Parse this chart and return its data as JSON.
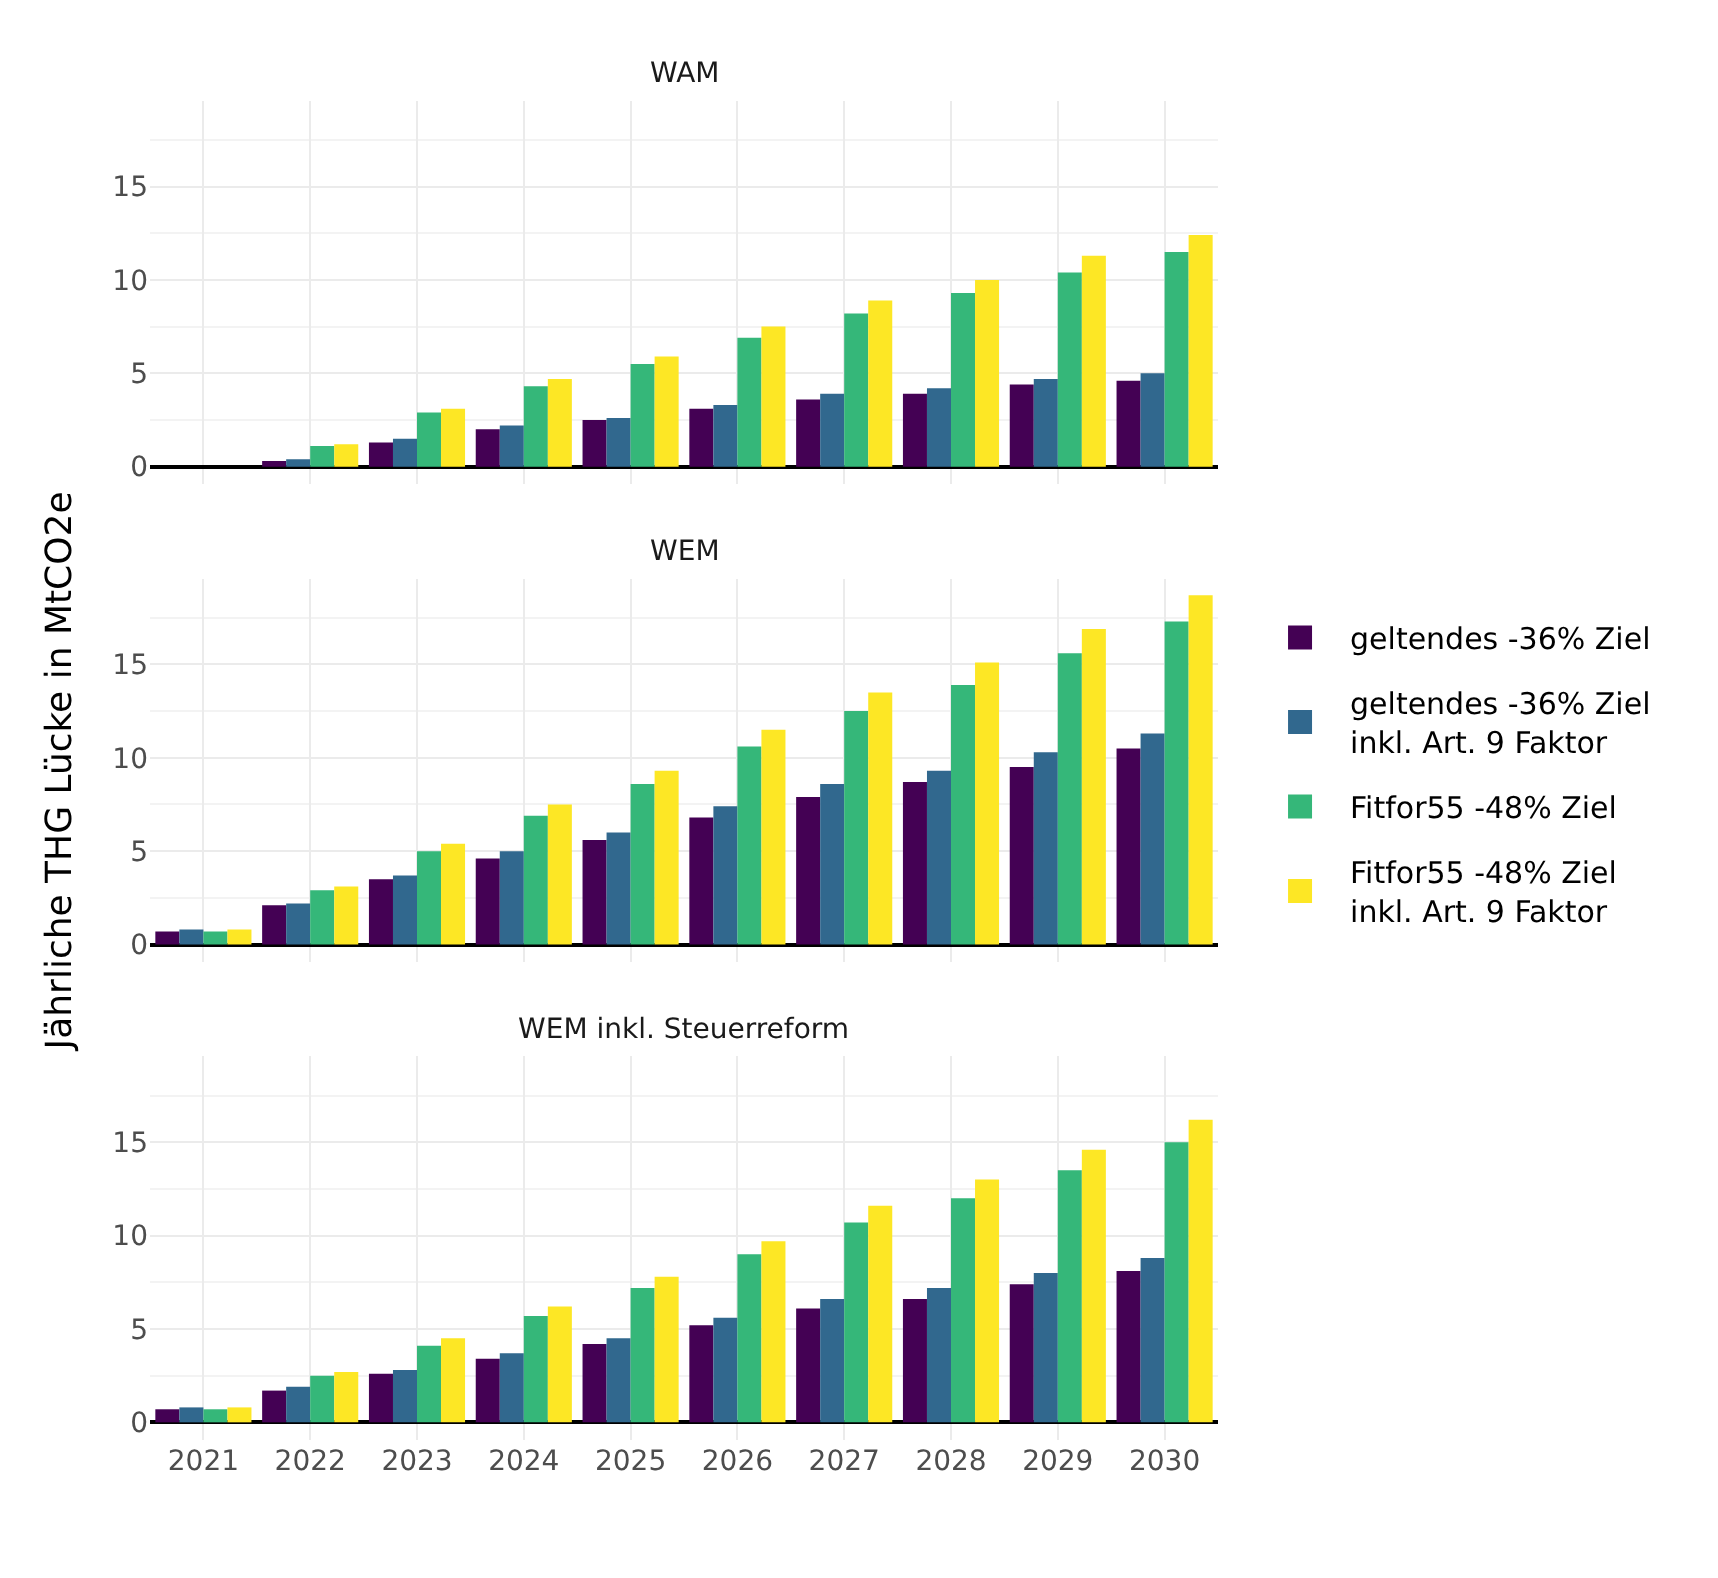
{
  "chart_data": [
    {
      "type": "bar",
      "title": "WAM",
      "categories": [
        "2021",
        "2022",
        "2023",
        "2024",
        "2025",
        "2026",
        "2027",
        "2028",
        "2029",
        "2030"
      ],
      "series": [
        {
          "name": "geltendes -36% Ziel",
          "color": "#440154",
          "values": [
            0,
            0.3,
            1.3,
            2.0,
            2.5,
            3.1,
            3.6,
            3.9,
            4.4,
            4.6
          ]
        },
        {
          "name": "geltendes -36% Ziel inkl. Art. 9 Faktor",
          "color": "#31688e",
          "values": [
            0,
            0.4,
            1.5,
            2.2,
            2.6,
            3.3,
            3.9,
            4.2,
            4.7,
            5.0
          ]
        },
        {
          "name": "Fitfor55 -48% Ziel",
          "color": "#35b779",
          "values": [
            0,
            1.1,
            2.9,
            4.3,
            5.5,
            6.9,
            8.2,
            9.3,
            10.4,
            11.5
          ]
        },
        {
          "name": "Fitfor55 -48% Ziel inkl. Art. 9 Faktor",
          "color": "#fde725",
          "values": [
            0,
            1.2,
            3.1,
            4.7,
            5.9,
            7.5,
            8.9,
            10.0,
            11.3,
            12.4
          ]
        }
      ],
      "ylim": [
        -0.95,
        19.6
      ],
      "yticks": [
        0,
        5,
        10,
        15
      ],
      "grid": true,
      "legend": "right",
      "tick_labels": "y"
    },
    {
      "type": "bar",
      "title": "WEM",
      "ylabel": "Jährliche THG Lücke in MtCO2e",
      "categories": [
        "2021",
        "2022",
        "2023",
        "2024",
        "2025",
        "2026",
        "2027",
        "2028",
        "2029",
        "2030"
      ],
      "series": [
        {
          "name": "geltendes -36% Ziel",
          "color": "#440154",
          "values": [
            0.7,
            2.1,
            3.5,
            4.6,
            5.6,
            6.8,
            7.9,
            8.7,
            9.5,
            10.5
          ]
        },
        {
          "name": "geltendes -36% Ziel inkl. Art. 9 Faktor",
          "color": "#31688e",
          "values": [
            0.8,
            2.2,
            3.7,
            5.0,
            6.0,
            7.4,
            8.6,
            9.3,
            10.3,
            11.3
          ]
        },
        {
          "name": "Fitfor55 -48% Ziel",
          "color": "#35b779",
          "values": [
            0.7,
            2.9,
            5.0,
            6.9,
            8.6,
            10.6,
            12.5,
            13.9,
            15.6,
            17.3
          ]
        },
        {
          "name": "Fitfor55 -48% Ziel inkl. Art. 9 Faktor",
          "color": "#fde725",
          "values": [
            0.8,
            3.1,
            5.4,
            7.5,
            9.3,
            11.5,
            13.5,
            15.1,
            16.9,
            18.7
          ]
        }
      ],
      "ylim": [
        -0.95,
        19.6
      ],
      "yticks": [
        0,
        5,
        10,
        15
      ],
      "grid": true,
      "legend": "right",
      "tick_labels": "y"
    },
    {
      "type": "bar",
      "title": "WEM inkl. Steuerreform",
      "categories": [
        "2021",
        "2022",
        "2023",
        "2024",
        "2025",
        "2026",
        "2027",
        "2028",
        "2029",
        "2030"
      ],
      "series": [
        {
          "name": "geltendes -36% Ziel",
          "color": "#440154",
          "values": [
            0.7,
            1.7,
            2.6,
            3.4,
            4.2,
            5.2,
            6.1,
            6.6,
            7.4,
            8.1
          ]
        },
        {
          "name": "geltendes -36% Ziel inkl. Art. 9 Faktor",
          "color": "#31688e",
          "values": [
            0.8,
            1.9,
            2.8,
            3.7,
            4.5,
            5.6,
            6.6,
            7.2,
            8.0,
            8.8
          ]
        },
        {
          "name": "Fitfor55 -48% Ziel",
          "color": "#35b779",
          "values": [
            0.7,
            2.5,
            4.1,
            5.7,
            7.2,
            9.0,
            10.7,
            12.0,
            13.5,
            15.0
          ]
        },
        {
          "name": "Fitfor55 -48% Ziel inkl. Art. 9 Faktor",
          "color": "#fde725",
          "values": [
            0.8,
            2.7,
            4.5,
            6.2,
            7.8,
            9.7,
            11.6,
            13.0,
            14.6,
            16.2
          ]
        }
      ],
      "ylim": [
        -0.95,
        19.6
      ],
      "yticks": [
        0,
        5,
        10,
        15
      ],
      "grid": true,
      "legend": "right"
    }
  ]
}
